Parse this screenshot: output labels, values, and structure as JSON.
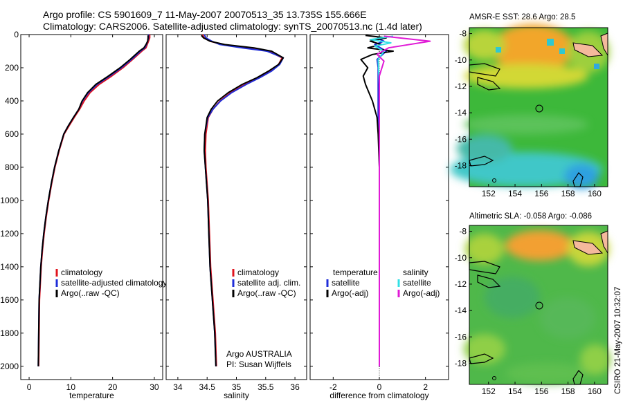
{
  "header": {
    "line1": "Argo profile: CS 5901609_7 11-May-2007 20070513_35 13.735S 155.666E",
    "line2": "Climatology: CARS2006. Satellite-adjusted climatology: synTS_20070513.nc (1.4d later)"
  },
  "side_text": "CSIRO 21-May-2007 10:32:07",
  "colors": {
    "climatology": "#e0141e",
    "satellite": "#1f2dd8",
    "argo": "#000000",
    "sal_satellite": "#33e0e6",
    "sal_argo": "#e01ad6"
  },
  "chart_data": [
    {
      "id": "temperature",
      "type": "line",
      "xlabel": "temperature",
      "ylabel": "",
      "xlim": [
        -2,
        32
      ],
      "ylim": [
        2080,
        0
      ],
      "xticks": [
        0,
        10,
        20,
        30
      ],
      "yticks": [
        0,
        200,
        400,
        600,
        800,
        1000,
        1200,
        1400,
        1600,
        1800,
        2000
      ],
      "legend": [
        "climatology",
        "satellite-adjusted climatology",
        "Argo(..raw -QC)"
      ],
      "series": [
        {
          "name": "climatology",
          "color": "#e0141e",
          "x": [
            28.9,
            28.9,
            28.6,
            28.3,
            28.0,
            27.0,
            24.8,
            22.5,
            19.8,
            16.8,
            14.6,
            13.2,
            12.1,
            10.8,
            9.6,
            8.4,
            7.2,
            6.2,
            5.4,
            4.7,
            4.1,
            3.6,
            3.2,
            2.9,
            2.7,
            2.5,
            2.4,
            2.3
          ],
          "y": [
            0,
            20,
            40,
            60,
            80,
            100,
            150,
            200,
            250,
            300,
            350,
            400,
            450,
            500,
            550,
            600,
            700,
            800,
            900,
            1000,
            1100,
            1200,
            1300,
            1400,
            1500,
            1600,
            1800,
            2000
          ]
        },
        {
          "name": "satellite-adjusted climatology",
          "color": "#1f2dd8",
          "x": [
            28.6,
            28.6,
            28.4,
            28.1,
            27.7,
            26.7,
            24.5,
            22.1,
            19.3,
            16.3,
            14.2,
            12.8,
            11.9,
            10.6,
            9.4,
            8.3,
            7.1,
            6.1,
            5.3,
            4.6,
            4.0,
            3.5,
            3.1,
            2.8,
            2.6,
            2.4,
            2.3,
            2.2
          ],
          "y": [
            0,
            20,
            40,
            60,
            80,
            100,
            150,
            200,
            250,
            300,
            350,
            400,
            450,
            500,
            550,
            600,
            700,
            800,
            900,
            1000,
            1100,
            1200,
            1300,
            1400,
            1500,
            1600,
            1800,
            2000
          ]
        },
        {
          "name": "Argo(..raw -QC)",
          "color": "#000000",
          "x": [
            28.5,
            28.5,
            28.4,
            28.0,
            27.5,
            26.4,
            24.2,
            21.8,
            19.0,
            16.0,
            14.0,
            12.7,
            11.9,
            10.6,
            9.4,
            8.3,
            7.1,
            6.1,
            5.3,
            4.6,
            4.0,
            3.5,
            3.1,
            2.8,
            2.6,
            2.4,
            2.3,
            2.2
          ],
          "y": [
            5,
            20,
            40,
            60,
            80,
            100,
            150,
            200,
            250,
            300,
            350,
            400,
            450,
            500,
            550,
            600,
            700,
            800,
            900,
            1000,
            1100,
            1200,
            1300,
            1400,
            1500,
            1600,
            1800,
            2000
          ]
        }
      ]
    },
    {
      "id": "salinity",
      "type": "line",
      "xlabel": "salinity",
      "ylabel": "",
      "xlim": [
        33.8,
        36.2
      ],
      "ylim": [
        2080,
        0
      ],
      "xticks": [
        34,
        34.5,
        35,
        35.5,
        36
      ],
      "legend": [
        "climatology",
        "satellite adj. clim.",
        "Argo(..raw -QC)"
      ],
      "annotation": [
        "Argo AUSTRALIA",
        "PI: Susan Wijffels"
      ],
      "series": [
        {
          "name": "climatology",
          "color": "#e0141e",
          "x": [
            34.42,
            34.45,
            34.55,
            34.75,
            35.15,
            35.55,
            35.78,
            35.72,
            35.58,
            35.38,
            35.15,
            34.9,
            34.72,
            34.6,
            34.52,
            34.48,
            34.47,
            34.48,
            34.5,
            34.52,
            34.54,
            34.56,
            34.58,
            34.6,
            34.62,
            34.64,
            34.66
          ],
          "y": [
            0,
            20,
            40,
            60,
            80,
            100,
            140,
            180,
            220,
            260,
            300,
            350,
            400,
            450,
            500,
            600,
            700,
            800,
            900,
            1000,
            1200,
            1400,
            1500,
            1600,
            1700,
            1800,
            2000
          ]
        },
        {
          "name": "satellite adj. clim.",
          "color": "#1f2dd8",
          "x": [
            34.45,
            34.48,
            34.58,
            34.72,
            35.1,
            35.52,
            35.8,
            35.74,
            35.6,
            35.4,
            35.17,
            34.92,
            34.73,
            34.6,
            34.51,
            34.46,
            34.45,
            34.47,
            34.49,
            34.51,
            34.53,
            34.55,
            34.57,
            34.59,
            34.61,
            34.63,
            34.65
          ],
          "y": [
            0,
            20,
            40,
            60,
            80,
            100,
            140,
            180,
            220,
            260,
            300,
            350,
            400,
            450,
            500,
            600,
            700,
            800,
            900,
            1000,
            1200,
            1400,
            1500,
            1600,
            1700,
            1800,
            2000
          ]
        },
        {
          "name": "Argo(..raw -QC)",
          "color": "#000000",
          "x": [
            34.4,
            34.44,
            34.55,
            34.8,
            35.3,
            35.6,
            35.8,
            35.72,
            35.55,
            35.35,
            35.1,
            34.86,
            34.68,
            34.57,
            34.5,
            34.46,
            34.45,
            34.47,
            34.49,
            34.51,
            34.53,
            34.55,
            34.57,
            34.59,
            34.61,
            34.63,
            34.65
          ],
          "y": [
            5,
            20,
            40,
            60,
            80,
            100,
            140,
            180,
            220,
            260,
            300,
            350,
            400,
            450,
            500,
            600,
            700,
            800,
            900,
            1000,
            1200,
            1400,
            1500,
            1600,
            1700,
            1800,
            2000
          ]
        }
      ]
    },
    {
      "id": "difference",
      "type": "line",
      "xlabel": "difference from climatology",
      "ylabel": "",
      "xlim": [
        -3,
        3
      ],
      "ylim": [
        2080,
        0
      ],
      "xticks": [
        -2,
        0,
        2
      ],
      "legend_left_title": "temperature",
      "legend_right_title": "salinity",
      "legend_left": [
        "satellite",
        "Argo(-adj)"
      ],
      "legend_right": [
        "satellite",
        "Argo(-adj)"
      ],
      "series": [
        {
          "name": "temperature satellite",
          "color": "#1f2dd8",
          "x": [
            -0.1,
            0.2,
            -0.2,
            0.3,
            -0.1,
            -0.05,
            -0.05,
            -0.05,
            -0.05,
            -0.02,
            0,
            0,
            0,
            0
          ],
          "y": [
            20,
            40,
            60,
            100,
            150,
            200,
            300,
            400,
            500,
            600,
            800,
            1200,
            1600,
            2000
          ]
        },
        {
          "name": "temperature Argo(-adj)",
          "color": "#000000",
          "x": [
            -0.6,
            0.3,
            -0.4,
            0.1,
            -0.5,
            0.6,
            -0.3,
            -0.8,
            -0.5,
            -0.7,
            -0.6,
            -0.3,
            -0.1,
            -0.05,
            0,
            0
          ],
          "y": [
            5,
            20,
            40,
            60,
            80,
            100,
            120,
            150,
            200,
            250,
            300,
            400,
            500,
            600,
            800,
            2000
          ]
        },
        {
          "name": "salinity satellite",
          "color": "#33e0e6",
          "x": [
            0.6,
            -0.4,
            0.5,
            -0.2,
            0.2,
            -0.05,
            0,
            0,
            0,
            0
          ],
          "y": [
            10,
            30,
            50,
            70,
            100,
            150,
            300,
            600,
            1200,
            2000
          ]
        },
        {
          "name": "salinity Argo(-adj)",
          "color": "#e01ad6",
          "x": [
            0.2,
            2.2,
            0.4,
            -0.1,
            0.2,
            0,
            0,
            0,
            0
          ],
          "y": [
            10,
            40,
            80,
            120,
            160,
            250,
            500,
            1000,
            2000
          ]
        }
      ]
    }
  ],
  "maps": [
    {
      "title": "AMSR-E SST: 28.6 Argo: 28.5",
      "xticks": [
        152,
        154,
        156,
        158,
        160
      ],
      "yticks": [
        -8,
        -10,
        -12,
        -14,
        -16,
        -18
      ]
    },
    {
      "title": "Altimetric SLA: -0.058 Argo: -0.086",
      "xticks": [
        152,
        154,
        156,
        158,
        160
      ],
      "yticks": [
        -8,
        -10,
        -12,
        -14,
        -16,
        -18
      ]
    }
  ]
}
